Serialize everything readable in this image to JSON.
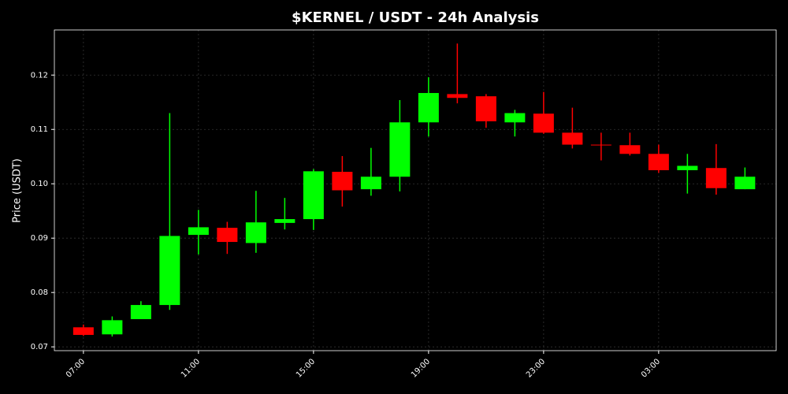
{
  "chart_data": {
    "type": "candlestick",
    "title": "$KERNEL / USDT - 24h Analysis",
    "y_label": "Price (USDT)",
    "categories": [
      "07:00",
      null,
      null,
      null,
      "11:00",
      null,
      null,
      null,
      "15:00",
      null,
      null,
      null,
      "19:00",
      null,
      null,
      null,
      "23:00",
      null,
      null,
      null,
      "03:00",
      null,
      null,
      null
    ],
    "series": [
      {
        "open": [
          0.0736,
          0.0723,
          0.0751,
          0.0777,
          0.0906,
          0.0919,
          0.0891,
          0.0928,
          0.0935,
          0.1022,
          0.099,
          0.1013,
          0.1113,
          0.1165,
          0.1161,
          0.1113,
          0.1129,
          0.1094,
          0.1072,
          0.1071,
          0.1055,
          0.1025,
          0.1029,
          0.099
        ],
        "high": [
          0.0741,
          0.0756,
          0.0784,
          0.113,
          0.0952,
          0.093,
          0.0987,
          0.0974,
          0.1027,
          0.1051,
          0.1066,
          0.1154,
          0.1196,
          0.1258,
          0.1165,
          0.1136,
          0.1169,
          0.114,
          0.1094,
          0.1094,
          0.1072,
          0.1055,
          0.1073,
          0.103
        ],
        "low": [
          0.072,
          0.0719,
          0.0751,
          0.0768,
          0.087,
          0.0871,
          0.0873,
          0.0916,
          0.0915,
          0.0958,
          0.0978,
          0.0986,
          0.1087,
          0.1148,
          0.1103,
          0.1087,
          0.1092,
          0.1065,
          0.1043,
          0.1052,
          0.102,
          0.0982,
          0.098,
          0.099
        ],
        "close": [
          0.0722,
          0.0749,
          0.0777,
          0.0904,
          0.092,
          0.0893,
          0.0929,
          0.0935,
          0.1023,
          0.0988,
          0.1013,
          0.1113,
          0.1167,
          0.1158,
          0.1115,
          0.113,
          0.1094,
          0.1072,
          0.1071,
          0.1055,
          0.1025,
          0.1033,
          0.0992,
          0.1013
        ]
      }
    ],
    "up_color": "#00ff00",
    "down_color": "#ff0000",
    "ylim": [
      0.0693,
      0.1283
    ],
    "yticks": [
      0.07,
      0.08,
      0.09,
      {
        "value": 0.1,
        "label": "0.10"
      },
      0.11,
      0.12
    ],
    "grid": true
  }
}
